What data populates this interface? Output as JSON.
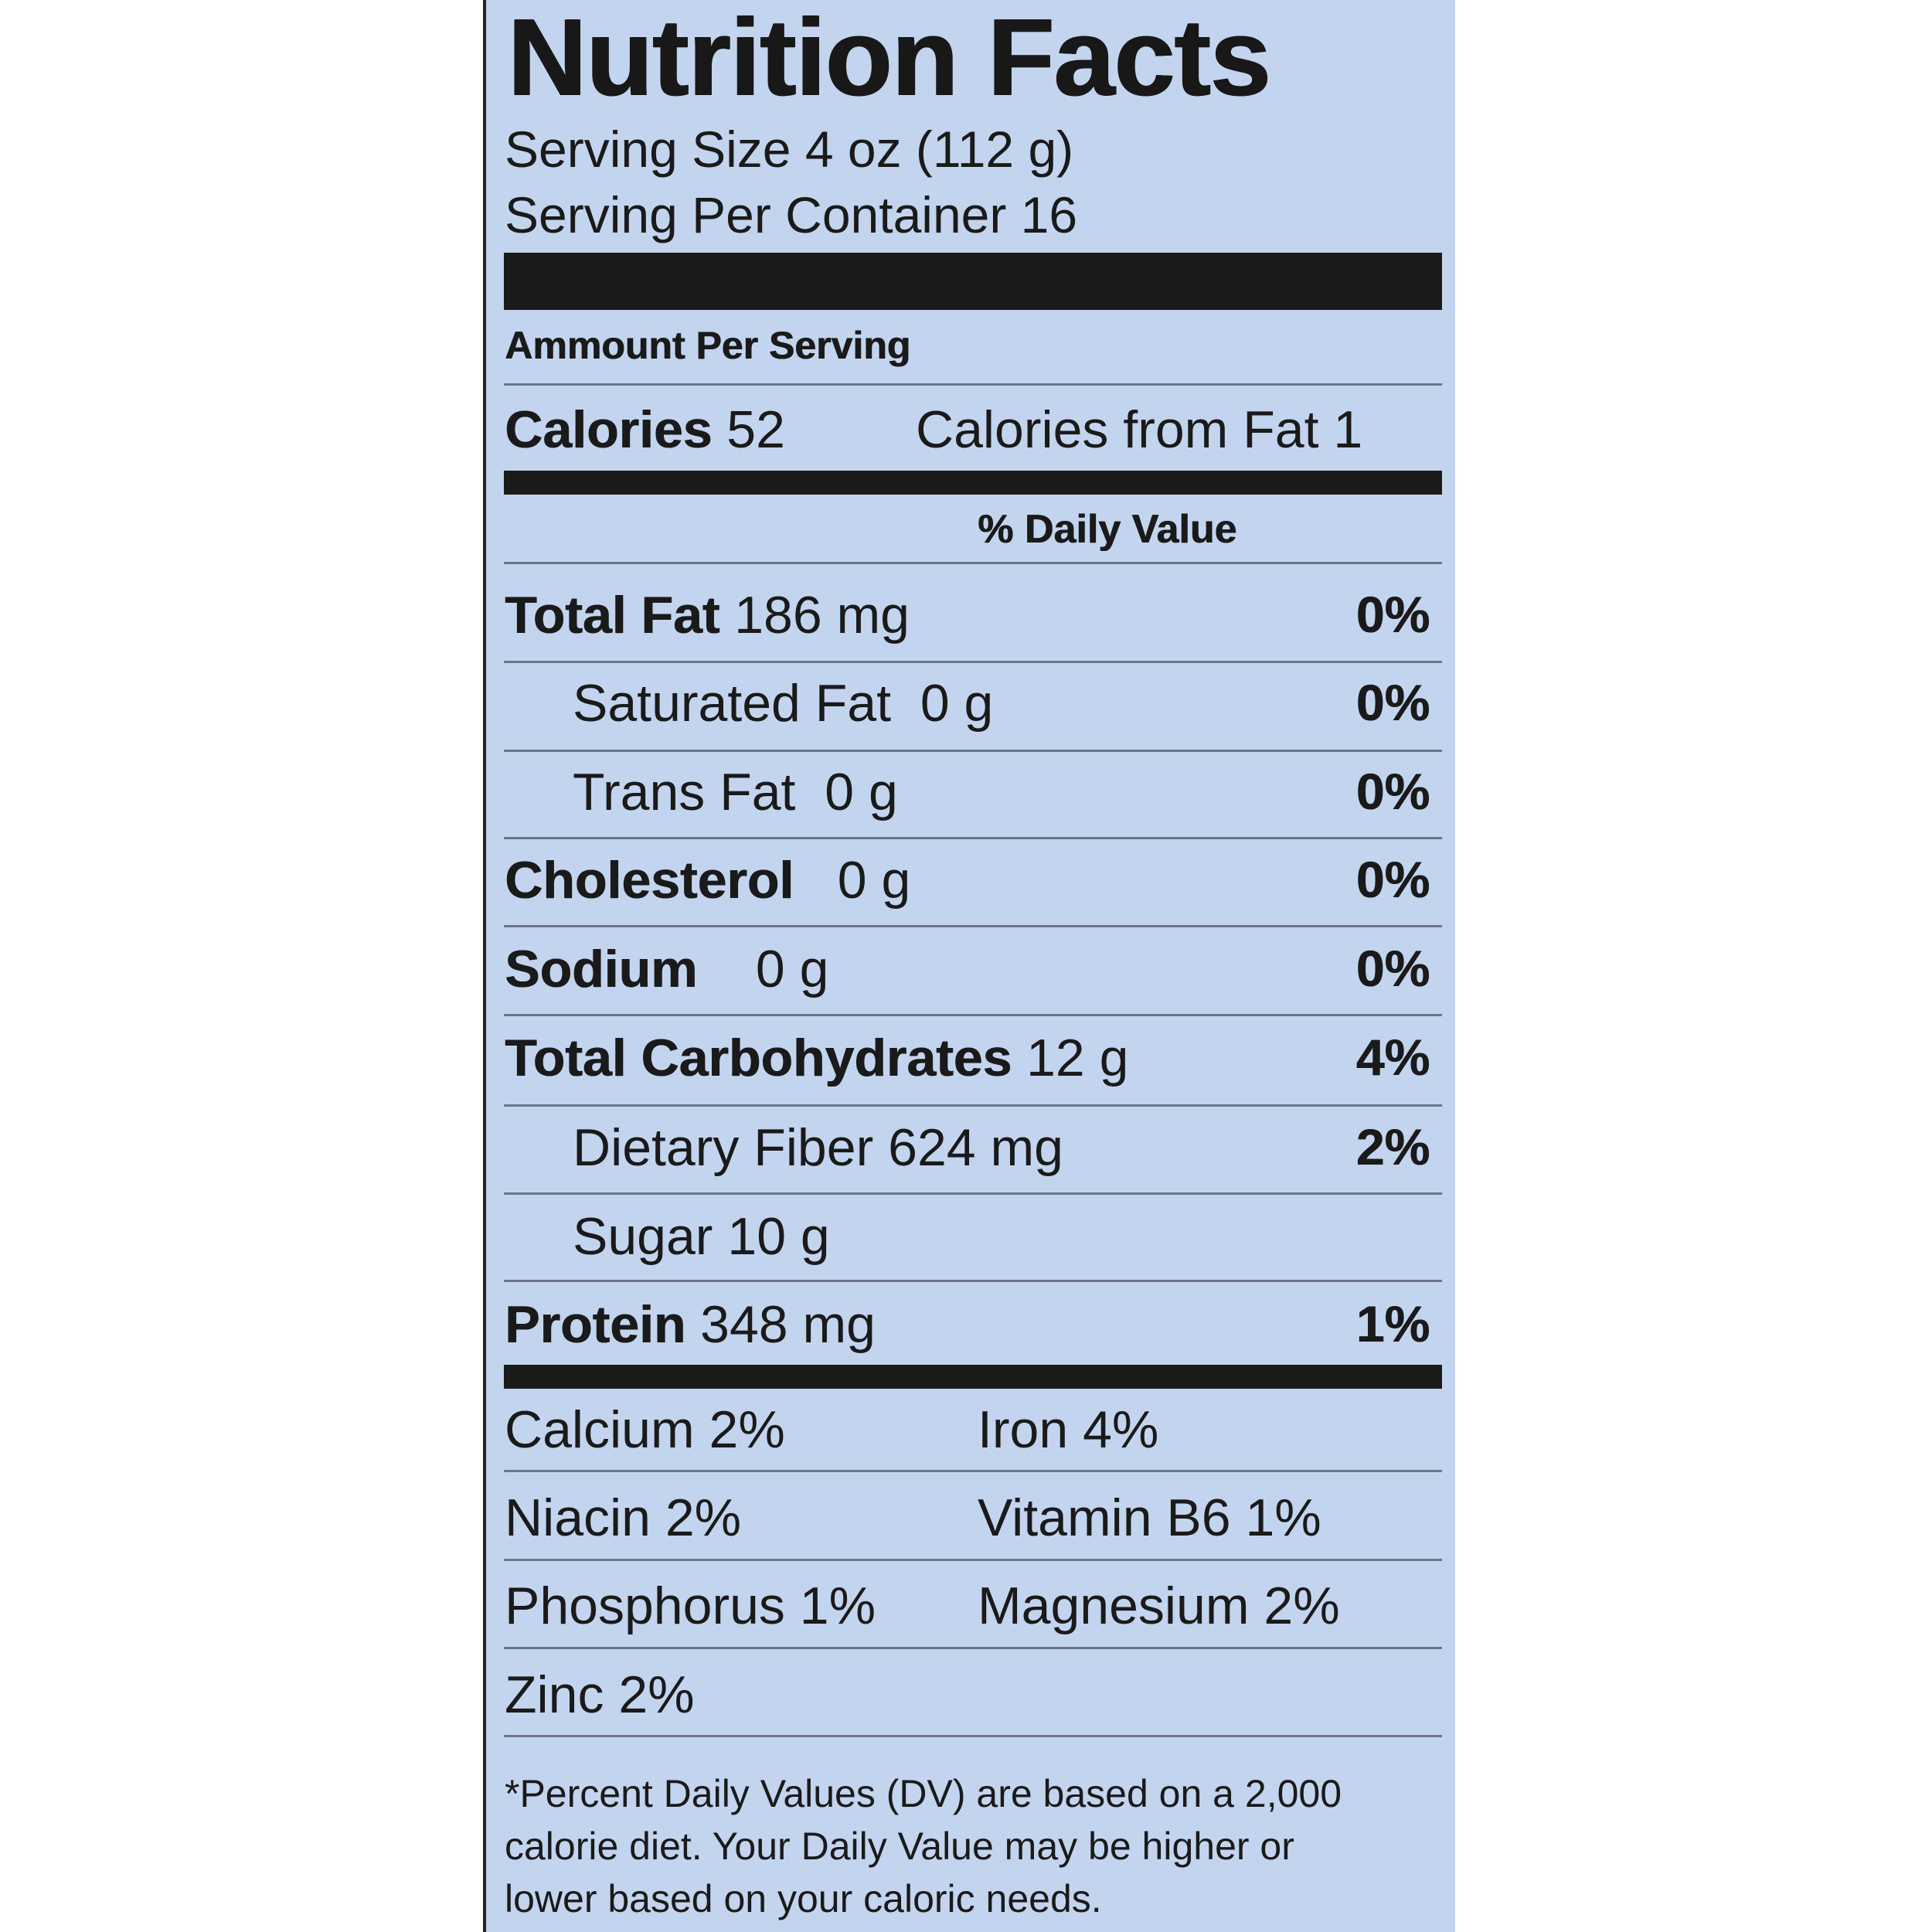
{
  "label": {
    "title": "Nutrition Facts",
    "serving_size": "Serving Size 4 oz (112 g)",
    "servings_per_container": "Serving Per Container 16",
    "amount_per_serving": "Ammount Per Serving",
    "calories_label": "Calories",
    "calories_value": "52",
    "calories_from_fat": "Calories from Fat 1",
    "daily_value_header": "% Daily Value",
    "nutrients": [
      {
        "name": "Total Fat",
        "amount": "186 mg",
        "dv": "0%"
      },
      {
        "name": "Saturated Fat",
        "amount": "0 g",
        "dv": "0%"
      },
      {
        "name": "Trans Fat",
        "amount": "0 g",
        "dv": "0%"
      },
      {
        "name": "Cholesterol",
        "amount": "0 g",
        "dv": "0%"
      },
      {
        "name": "Sodium",
        "amount": "0 g",
        "dv": "0%"
      },
      {
        "name": "Total Carbohydrates",
        "amount": "12 g",
        "dv": "4%"
      },
      {
        "name": "Dietary Fiber",
        "amount": "624 mg",
        "dv": "2%"
      },
      {
        "name": "Sugar",
        "amount": "10 g",
        "dv": ""
      },
      {
        "name": "Protein",
        "amount": "348 mg",
        "dv": "1%"
      }
    ],
    "vitamins": [
      {
        "left": "Calcium 2%",
        "right": "Iron 4%"
      },
      {
        "left": "Niacin 2%",
        "right": "Vitamin B6 1%"
      },
      {
        "left": "Phosphorus 1%",
        "right": "Magnesium 2%"
      },
      {
        "left": "Zinc 2%",
        "right": ""
      }
    ],
    "footnote_lines": [
      "*Percent Daily Values (DV) are based on a 2,000",
      "calorie diet. Your Daily Value may be higher or",
      "lower based on your caloric needs."
    ],
    "colors": {
      "label_background": "#c2d4ee",
      "rule_dark": "#1b1b1b",
      "rule_thin": "#6b7585"
    }
  }
}
